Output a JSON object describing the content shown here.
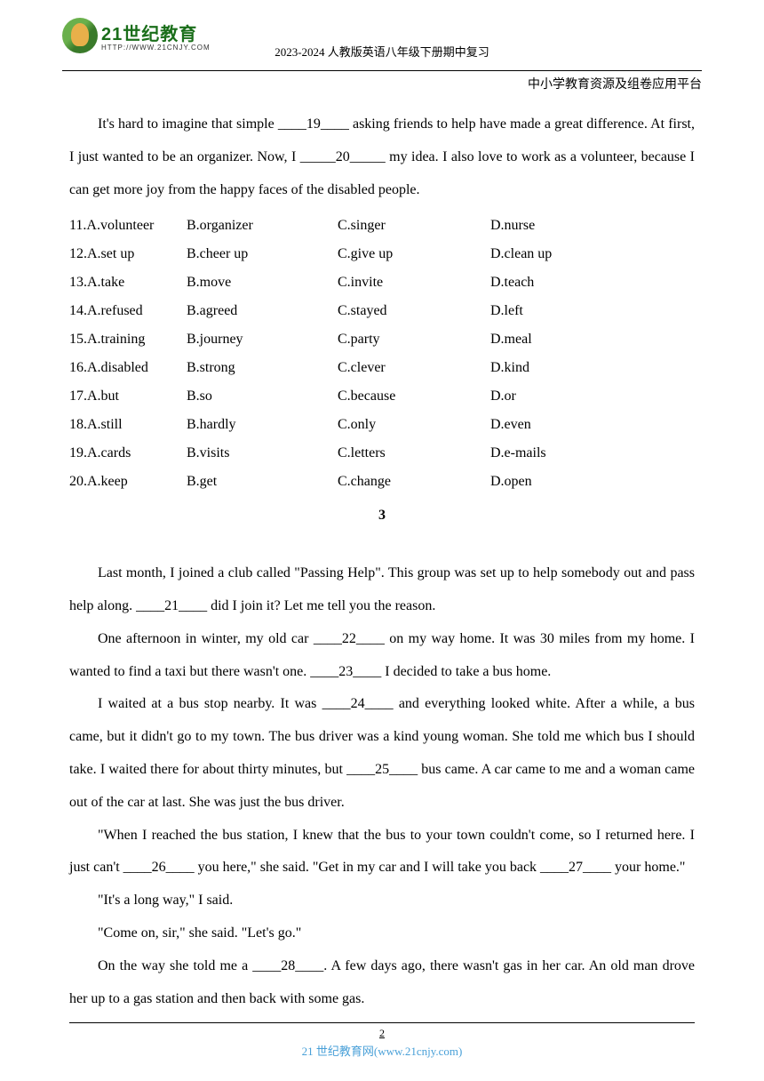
{
  "header": {
    "logo_main": "21世纪教育",
    "logo_sub": "HTTP://WWW.21CNJY.COM",
    "doc_title": "2023-2024 人教版英语八年级下册期中复习",
    "platform": "中小学教育资源及组卷应用平台"
  },
  "body": {
    "para1": "It's hard to imagine that simple ____19____ asking friends to help have made a great difference. At first, I just wanted to be an organizer. Now, I _____20_____ my idea. I also love to work as a volunteer, because I can get more joy from the happy faces of the disabled people.",
    "options": [
      {
        "n": "11.A.volunteer",
        "b": "B.organizer",
        "c": "C.singer",
        "d": "D.nurse"
      },
      {
        "n": "12.A.set up",
        "b": "B.cheer up",
        "c": "C.give up",
        "d": "D.clean up"
      },
      {
        "n": "13.A.take",
        "b": "B.move",
        "c": "C.invite",
        "d": "D.teach"
      },
      {
        "n": "14.A.refused",
        "b": "B.agreed",
        "c": "C.stayed",
        "d": "D.left"
      },
      {
        "n": "15.A.training",
        "b": "B.journey",
        "c": "C.party",
        "d": "D.meal"
      },
      {
        "n": "16.A.disabled",
        "b": "B.strong",
        "c": "C.clever",
        "d": "D.kind"
      },
      {
        "n": "17.A.but",
        "b": "B.so",
        "c": "C.because",
        "d": "D.or"
      },
      {
        "n": "18.A.still",
        "b": "B.hardly",
        "c": "C.only",
        "d": "D.even"
      },
      {
        "n": "19.A.cards",
        "b": "B.visits",
        "c": "C.letters",
        "d": "D.e-mails"
      },
      {
        "n": "20.A.keep",
        "b": "B.get",
        "c": "C.change",
        "d": "D.open"
      }
    ],
    "section_number": "3",
    "para2": "Last month, I joined a club called \"Passing Help\". This group was set up to help somebody out and pass help along. ____21____ did I join it? Let me tell you the reason.",
    "para3": "One afternoon in winter, my old car ____22____ on my way home. It was 30 miles from my home. I wanted to find a taxi but there wasn't one. ____23____ I decided to take a bus home.",
    "para4": "I waited at a bus stop nearby. It was ____24____ and everything looked white. After a while, a bus came, but it didn't go to my town. The bus driver was a kind young woman. She told me which bus I should take. I waited there for about thirty minutes, but ____25____ bus came. A car came to me and a woman came out of the car at last. She was just the bus driver.",
    "para5": "\"When I reached the bus station, I knew that the bus to your town couldn't come, so I returned here. I just can't ____26____ you here,\" she said. \"Get in my car and I will take you back ____27____ your home.\"",
    "para6": "\"It's a long way,\" I said.",
    "para7": "\"Come on, sir,\" she said. \"Let's go.\"",
    "para8": "On the way she told me a ____28____. A few days ago, there wasn't gas in her car. An old man drove her up to a gas station and then back with some gas."
  },
  "footer": {
    "page": "2",
    "text": "21 世纪教育网(www.21cnjy.com)"
  },
  "colors": {
    "link": "#49a0d8",
    "logo_green": "#1a6e1a"
  }
}
